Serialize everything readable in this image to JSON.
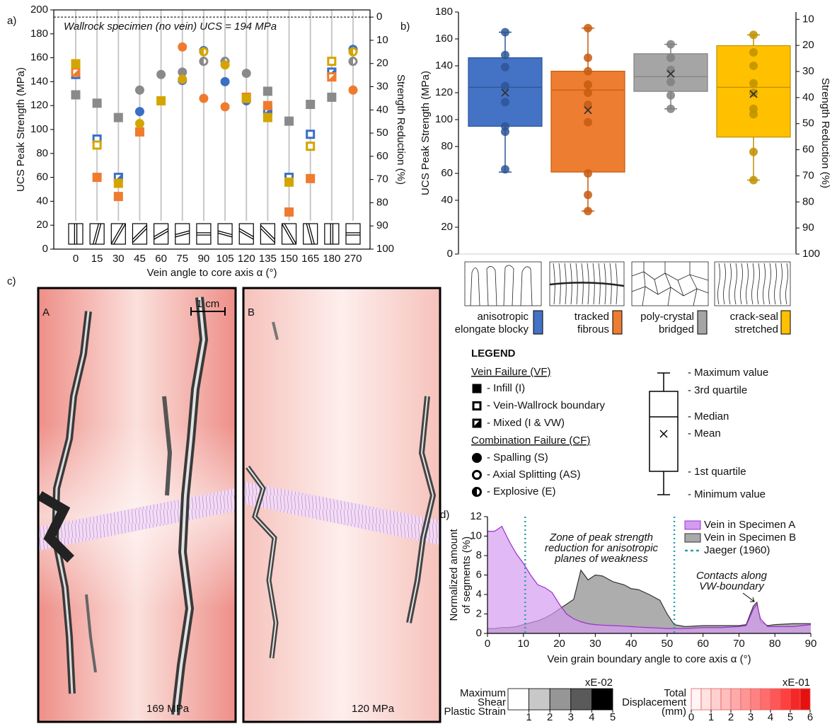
{
  "panel_labels": [
    "a)",
    "b)",
    "c)",
    "d)"
  ],
  "chart_data": [
    {
      "type": "scatter",
      "ylabel": "UCS Peak Strength (MPa)",
      "y2label": "Strength Reduction (%)",
      "xlabel": "Vein angle to core axis α (°)",
      "annotation": "Wallrock specimen (no vein) UCS = 194 MPa",
      "reference_y": 194,
      "categories": [
        "0",
        "15",
        "30",
        "45",
        "60",
        "75",
        "90",
        "105",
        "120",
        "135",
        "150",
        "165",
        "180",
        "270"
      ],
      "series": [
        {
          "color": "#8a8a8a",
          "values": [
            129,
            122,
            110,
            133,
            146,
            148,
            157,
            157,
            147,
            132,
            107,
            121,
            127,
            157
          ],
          "markers": [
            "s",
            "s",
            "s",
            "c",
            "c",
            "c",
            "ch",
            "ch",
            "c",
            "s",
            "s",
            "s",
            "s",
            "ch"
          ]
        },
        {
          "color": "#3a6fc4",
          "values": [
            146,
            92,
            60,
            115,
            null,
            141,
            166,
            140,
            124,
            116,
            60,
            96,
            148,
            167
          ],
          "markers": [
            "so",
            "so",
            "sm",
            "c",
            null,
            "c",
            "ch",
            "c",
            "c",
            "sm",
            "so",
            "so",
            "sm",
            "ch"
          ]
        },
        {
          "color": "#ef7b2f",
          "values": [
            148,
            60,
            44,
            98,
            null,
            169,
            126,
            119,
            127,
            120,
            31,
            59,
            144,
            133
          ],
          "markers": [
            "sm",
            "s",
            "s",
            "s",
            null,
            "c",
            "c",
            "c",
            "s",
            "s",
            "s",
            "s",
            "sm",
            "c"
          ]
        },
        {
          "color": "#d4a500",
          "values": [
            155,
            87,
            55,
            105,
            124,
            142,
            165,
            154,
            126,
            110,
            56,
            86,
            157,
            165
          ],
          "markers": [
            "s",
            "so",
            "s",
            "c",
            "s",
            "c",
            "ch",
            "c",
            "s",
            "s",
            "s",
            "so",
            "so",
            "ch"
          ]
        }
      ],
      "ylim": [
        0,
        200
      ],
      "yticks": [
        0,
        20,
        40,
        60,
        80,
        100,
        120,
        140,
        160,
        180,
        200
      ],
      "y2lim": [
        100,
        -3.1
      ],
      "y2ticks": [
        0,
        10,
        20,
        30,
        40,
        50,
        60,
        70,
        80,
        90,
        100
      ],
      "grid": true
    },
    {
      "type": "box",
      "ylabel": "UCS Peak Strength (MPa)",
      "y2label": "Strength Reduction (%)",
      "categories": [
        [
          "anisotropic",
          "elongate blocky"
        ],
        [
          "tracked",
          "fibrous"
        ],
        [
          "poly-crystal",
          "bridged"
        ],
        [
          "crack-seal",
          "stretched"
        ]
      ],
      "colors": [
        "#4472c4",
        "#ed7d31",
        "#a5a5a5",
        "#ffc000"
      ],
      "edge_colors": [
        "#2f5597",
        "#c55a11",
        "#7f7f7f",
        "#bf9000"
      ],
      "boxes": [
        {
          "min": 61,
          "q1": 95,
          "median": 124,
          "q3": 146,
          "max": 165,
          "mean": 120,
          "points": [
            165,
            148,
            139,
            125,
            113,
            95,
            91,
            63
          ]
        },
        {
          "min": 32,
          "q1": 61,
          "median": 122,
          "q3": 136,
          "max": 168,
          "mean": 107,
          "points": [
            168,
            146,
            136,
            126,
            120,
            111,
            98,
            60,
            44,
            32
          ]
        },
        {
          "min": 108,
          "q1": 121,
          "median": 132,
          "q3": 149,
          "max": 156,
          "mean": 134,
          "points": [
            156,
            146,
            137,
            128,
            118,
            108
          ]
        },
        {
          "min": 55,
          "q1": 87,
          "median": 124,
          "q3": 155,
          "max": 163,
          "mean": 119,
          "points": [
            163,
            150,
            140,
            127,
            120,
            108,
            104,
            76,
            55
          ]
        }
      ],
      "ylim": [
        0,
        180
      ],
      "yticks": [
        0,
        20,
        40,
        60,
        80,
        100,
        120,
        140,
        160,
        180
      ],
      "y2lim": [
        100,
        7.2
      ],
      "y2ticks": [
        10,
        20,
        30,
        40,
        50,
        60,
        70,
        80,
        90,
        100
      ]
    },
    {
      "type": "area",
      "xlabel": "Vein grain boundary angle to core axis  α (°)",
      "ylabel": [
        "Normalized amount",
        "of segments (%)"
      ],
      "x": [
        0,
        2,
        4,
        6,
        8,
        10,
        12,
        14,
        16,
        18,
        20,
        22,
        24,
        26,
        28,
        30,
        32,
        35,
        38,
        40,
        42,
        45,
        48,
        50,
        52,
        55,
        60,
        65,
        70,
        72,
        74,
        75,
        76,
        78,
        80,
        85,
        90
      ],
      "series": [
        {
          "name": "Vein in Specimen B",
          "color": "#a9a9a9",
          "line": "#333333",
          "values": [
            0.5,
            0.5,
            0.6,
            0.6,
            0.7,
            0.9,
            1.1,
            1.3,
            1.6,
            2,
            2.5,
            3,
            3.5,
            6.5,
            5.5,
            6,
            5.9,
            5.3,
            5,
            4.6,
            4.5,
            4,
            3.4,
            2,
            0.9,
            0.7,
            0.8,
            0.8,
            0.8,
            0.9,
            2.8,
            3.2,
            1.2,
            0.8,
            0.9,
            1,
            1
          ]
        },
        {
          "name": "Vein in Specimen A",
          "color": "#d49bf0",
          "line": "#9b30d0",
          "values": [
            10.5,
            10.5,
            11,
            9.5,
            8.2,
            7.2,
            6,
            5,
            4.7,
            4.2,
            3,
            2,
            1.5,
            1.2,
            1,
            0.9,
            0.85,
            0.8,
            0.75,
            0.7,
            0.65,
            0.6,
            0.55,
            0.5,
            0.5,
            0.5,
            0.6,
            0.6,
            0.7,
            0.8,
            2.5,
            3,
            1.5,
            0.7,
            0.7,
            0.7,
            0.9
          ]
        }
      ],
      "reference_lines": {
        "name": "Jaeger (1960)",
        "color": "#2a9fa8",
        "x": [
          10.5,
          52
        ]
      },
      "annotations": {
        "zone": [
          "Zone of peak strength",
          "reduction for anisotropic",
          "planes of weakness"
        ],
        "contacts": [
          "Contacts along",
          "VW-boundary"
        ]
      },
      "xlim": [
        0,
        90
      ],
      "xticks": [
        0,
        10,
        20,
        30,
        40,
        50,
        60,
        70,
        80,
        90
      ],
      "ylim": [
        0,
        12
      ],
      "yticks": [
        0,
        2,
        4,
        6,
        8,
        10,
        12
      ]
    }
  ],
  "legend": {
    "title": "LEGEND",
    "vf_title": "Vein Failure (VF)",
    "vf_items": [
      "- Infill (I)",
      "- Vein-Wallrock boundary",
      "- Mixed (I & VW)"
    ],
    "cf_title": "Combination Failure (CF)",
    "cf_items": [
      "- Spalling (S)",
      "- Axial Splitting (AS)",
      "- Explosive (E)"
    ],
    "box_items": [
      "- Maximum value",
      "- 3rd quartile",
      "- Median",
      "- Mean",
      "- 1st quartile",
      "- Minimum value"
    ]
  },
  "panel_c": {
    "specimens": [
      {
        "label": "A",
        "ucs": "169 MPa"
      },
      {
        "label": "B",
        "ucs": "120 MPa"
      }
    ],
    "scale": "1 cm"
  },
  "colorbars": [
    {
      "title": [
        "Maximum",
        "Shear",
        "Plastic Strain"
      ],
      "exponent": "xE-02",
      "lim": [
        0,
        5
      ],
      "ticks": [
        1,
        2,
        3,
        4,
        5
      ],
      "colors": [
        "#ffffff",
        "#c8c8c8",
        "#969696",
        "#5a5a5a",
        "#000000"
      ]
    },
    {
      "title": [
        "Total",
        "Displacement",
        "(mm)"
      ],
      "exponent": "xE-01",
      "lim": [
        0,
        6
      ],
      "ticks": [
        0,
        1,
        2,
        3,
        4,
        5,
        6
      ],
      "colors": [
        "#fff5f5",
        "#ffe2e2",
        "#ffd0d0",
        "#ffbdbd",
        "#ffaaaa",
        "#ff9696",
        "#ff8282",
        "#ff6d6d",
        "#ff5757",
        "#ff4040",
        "#f52828",
        "#e61010"
      ]
    }
  ]
}
